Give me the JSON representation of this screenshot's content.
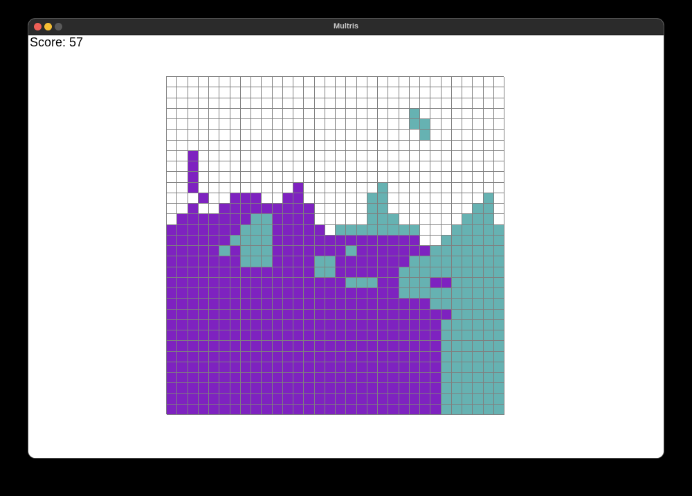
{
  "window": {
    "title": "Multris"
  },
  "score": {
    "text": "Score: 57"
  },
  "colors": {
    "purple": "#7e22c0",
    "teal": "#66b2b2",
    "empty": "#ffffff",
    "grid": "#7f7f7f"
  },
  "board": {
    "cols": 32,
    "rows": 32,
    "grid": [
      "................................",
      "................................",
      "................................",
      ".......................T........",
      ".......................TT.......",
      "........................T.......",
      "................................",
      "..P.............................",
      "..P.............................",
      "..P.............................",
      "..P.........P.......T...........",
      "...P..PPP..PP......TT.........T.",
      "..P..PPPPPPPPP.....TT........TT.",
      ".PPPPPPPTTPPPP.....TTT......TTT.",
      "PPPPPPPTTTPPPPP.TTTTTTTT...TTTTT",
      "PPPPPPTTTTPPPPPPPPPPPPPP..TTTTTT",
      "PPPPPTPTTTPPPPPPPTPPPPPPPTTTTTTT",
      "PPPPPPPTTTPPPPTTPPPPPPPTTTTTTTTT",
      "PPPPPPPPPPPPPPTTPPPPPPTTTTTTTTTT",
      "PPPPPPPPPPPPPPPPPTTTPPTTTPPTTTTT",
      "PPPPPPPPPPPPPPPPPPPPPPTTTTTTTTTT",
      "PPPPPPPPPPPPPPPPPPPPPPPPPTTTTTTT",
      "PPPPPPPPPPPPPPPPPPPPPPPPPPPTTTTT",
      "PPPPPPPPPPPPPPPPPPPPPPPPPPTTTTTT",
      "PPPPPPPPPPPPPPPPPPPPPPPPPPTTTTTT",
      "PPPPPPPPPPPPPPPPPPPPPPPPPPTTTTTT",
      "PPPPPPPPPPPPPPPPPPPPPPPPPPTTTTTT",
      "PPPPPPPPPPPPPPPPPPPPPPPPPPTTTTTT",
      "PPPPPPPPPPPPPPPPPPPPPPPPPPTTTTTT",
      "PPPPPPPPPPPPPPPPPPPPPPPPPPTTTTTT",
      "PPPPPPPPPPPPPPPPPPPPPPPPPPTTTTTT",
      "PPPPPPPPPPPPPPPPPPPPPPPPPPTTTTTT"
    ]
  }
}
